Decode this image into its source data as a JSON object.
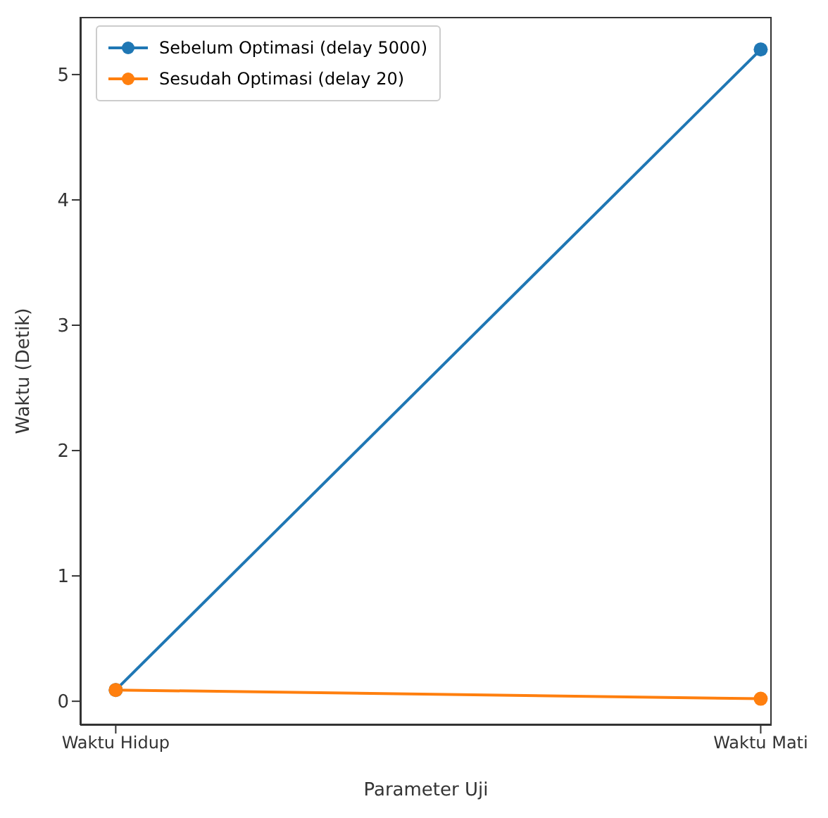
{
  "chart_data": {
    "type": "line",
    "xlabel": "Parameter Uji",
    "ylabel": "Waktu (Detik)",
    "categories": [
      "Waktu Hidup",
      "Waktu Mati"
    ],
    "series": [
      {
        "name": "Sebelum Optimasi (delay 5000)",
        "color": "#1f77b4",
        "values": [
          0.09,
          5.2
        ]
      },
      {
        "name": "Sesudah Optimasi (delay 20)",
        "color": "#ff7f0e",
        "values": [
          0.09,
          0.02
        ]
      }
    ],
    "ylim": [
      -0.19,
      5.46
    ],
    "yticks": [
      0,
      1,
      2,
      3,
      4,
      5
    ],
    "marker": "circle",
    "legend": "top left",
    "grid": false
  }
}
